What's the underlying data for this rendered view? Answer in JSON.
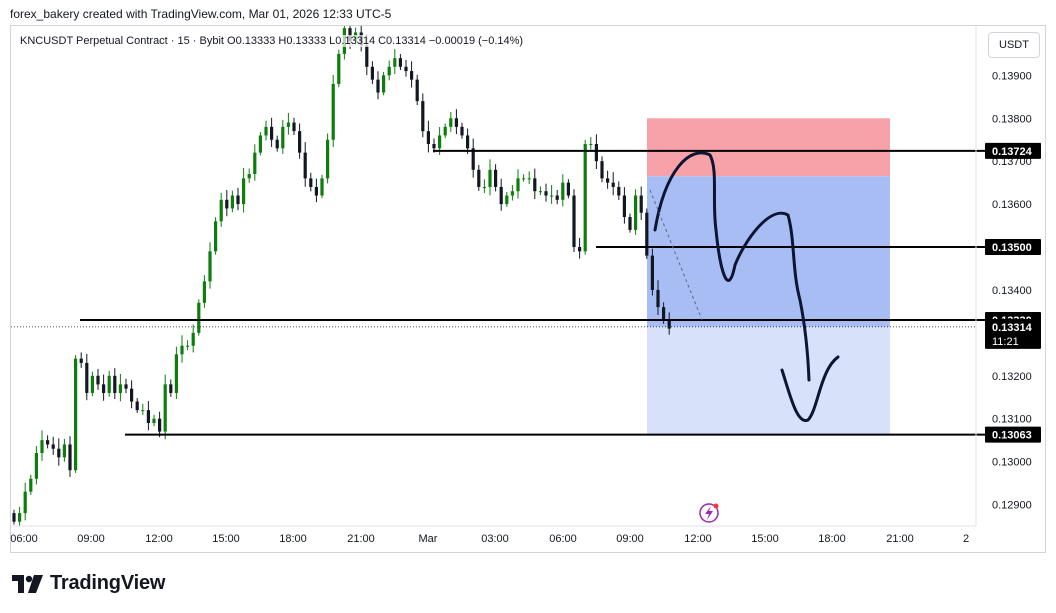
{
  "header": {
    "text": "forex_bakery created with TradingView.com, Mar 01, 2026 12:33 UTC-5"
  },
  "legend": {
    "text": "KNCUSDT Perpetual Contract · 15 · Bybit  O0.13333  H0.13333  L0.13314  C0.13314  −0.00019 (−0.14%)"
  },
  "currency_button": "USDT",
  "logo_text": "TradingView",
  "chart_data": {
    "type": "candlestick",
    "symbol": "KNCUSDT Perpetual Contract",
    "interval": "15",
    "exchange": "Bybit",
    "ohlc_last": {
      "open": 0.13333,
      "high": 0.13333,
      "low": 0.13314,
      "close": 0.13314,
      "change": -0.00019,
      "change_pct": -0.14
    },
    "y_range": [
      0.1285,
      0.14015
    ],
    "y_ticks": [
      "0.13900",
      "0.13800",
      "0.13700",
      "0.13600",
      "0.13400",
      "0.13200",
      "0.13100",
      "0.13000",
      "0.12900"
    ],
    "x_ticks": [
      "06:00",
      "09:00",
      "12:00",
      "15:00",
      "18:00",
      "21:00",
      "Mar",
      "03:00",
      "06:00",
      "09:00",
      "12:00",
      "15:00",
      "18:00",
      "21:00",
      "2"
    ],
    "closes": [
      0.1286,
      0.1288,
      0.1293,
      0.1296,
      0.1302,
      0.1305,
      0.1304,
      0.1303,
      0.1301,
      0.1304,
      0.1298,
      0.1324,
      0.1323,
      0.1316,
      0.132,
      0.1318,
      0.1316,
      0.132,
      0.1316,
      0.1318,
      0.1317,
      0.1314,
      0.1312,
      0.1312,
      0.1309,
      0.131,
      0.1307,
      0.1318,
      0.1316,
      0.1325,
      0.1327,
      0.1327,
      0.133,
      0.1337,
      0.1342,
      0.1349,
      0.1356,
      0.1361,
      0.1359,
      0.1362,
      0.136,
      0.1366,
      0.1367,
      0.1372,
      0.1376,
      0.1378,
      0.1375,
      0.1373,
      0.1378,
      0.1379,
      0.1377,
      0.1372,
      0.1366,
      0.1364,
      0.1362,
      0.1366,
      0.1375,
      0.1388,
      0.1395,
      0.1401,
      0.1398,
      0.14,
      0.1397,
      0.1392,
      0.1389,
      0.1386,
      0.139,
      0.1392,
      0.1394,
      0.1392,
      0.1391,
      0.1389,
      0.1384,
      0.1377,
      0.1374,
      0.1373,
      0.1376,
      0.1378,
      0.138,
      0.1378,
      0.1376,
      0.1373,
      0.1368,
      0.1364,
      0.1364,
      0.1368,
      0.1364,
      0.136,
      0.1362,
      0.1363,
      0.1366,
      0.1366,
      0.1366,
      0.1363,
      0.1363,
      0.1362,
      0.1362,
      0.1361,
      0.1365,
      0.1362,
      0.135,
      0.1349,
      0.1374,
      0.1374,
      0.137,
      0.1366,
      0.1365,
      0.1364,
      0.1362,
      0.1357,
      0.1354,
      0.1362,
      0.1358,
      0.1348,
      0.134,
      0.1336,
      0.1333,
      0.1331
    ],
    "price_lines": [
      {
        "label": "0.13724",
        "value": 0.13724
      },
      {
        "label": "0.13500",
        "value": 0.135
      },
      {
        "label": "0.13330",
        "value": 0.1333
      },
      {
        "label": "0.13063",
        "value": 0.13063
      }
    ],
    "last_price": {
      "label": "0.13314",
      "value": 0.13314,
      "countdown": "11:21"
    },
    "position": {
      "stop": 0.138,
      "entry": 0.13665,
      "target": 0.13063,
      "profit_zone_split": 0.13314
    },
    "colors": {
      "up": "#0d7d0d",
      "down": "#131722",
      "stop_zone": "#f7a1a9",
      "profit_zone": "#a9bdf5",
      "profit_zone_light": "#d7e1f9",
      "label_bg": "#000000"
    }
  }
}
